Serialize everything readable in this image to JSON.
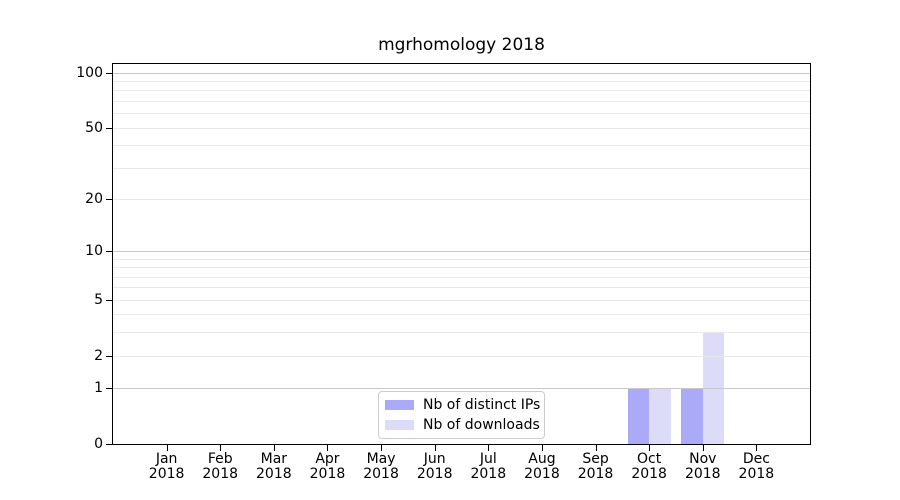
{
  "chart_data": {
    "type": "bar",
    "title": "mgrhomology 2018",
    "x_categories": [
      "Jan 2018",
      "Feb 2018",
      "Mar 2018",
      "Apr 2018",
      "May 2018",
      "Jun 2018",
      "Jul 2018",
      "Aug 2018",
      "Sep 2018",
      "Oct 2018",
      "Nov 2018",
      "Dec 2018"
    ],
    "x_tick_month": [
      "Jan",
      "Feb",
      "Mar",
      "Apr",
      "May",
      "Jun",
      "Jul",
      "Aug",
      "Sep",
      "Oct",
      "Nov",
      "Dec"
    ],
    "x_tick_year": "2018",
    "series": [
      {
        "name": "Nb of distinct IPs",
        "color": "#aaaaf8",
        "values": [
          0,
          0,
          0,
          0,
          0,
          0,
          0,
          0,
          0,
          1,
          1,
          0
        ]
      },
      {
        "name": "Nb of downloads",
        "color": "#dcdcf9",
        "values": [
          0,
          0,
          0,
          0,
          0,
          0,
          0,
          0,
          0,
          1,
          3,
          0
        ]
      }
    ],
    "y_scale": "log1p",
    "ylim": [
      0,
      111.3
    ],
    "y_tick_values": [
      0,
      1,
      2,
      5,
      10,
      20,
      50,
      100
    ],
    "y_tick_labels": [
      "0",
      "1",
      "2",
      "5",
      "10",
      "20",
      "50",
      "100"
    ],
    "y_major_gridlines": [
      1,
      10,
      100
    ],
    "y_minor_gridlines": [
      2,
      3,
      4,
      5,
      6,
      7,
      8,
      9,
      20,
      30,
      40,
      50,
      60,
      70,
      80,
      90
    ],
    "grid_major_color": "#c9c9c9",
    "grid_minor_color": "#e9e9e9",
    "legend": {
      "position": "lower center",
      "labels": [
        "Nb of distinct IPs",
        "Nb of downloads"
      ]
    }
  }
}
